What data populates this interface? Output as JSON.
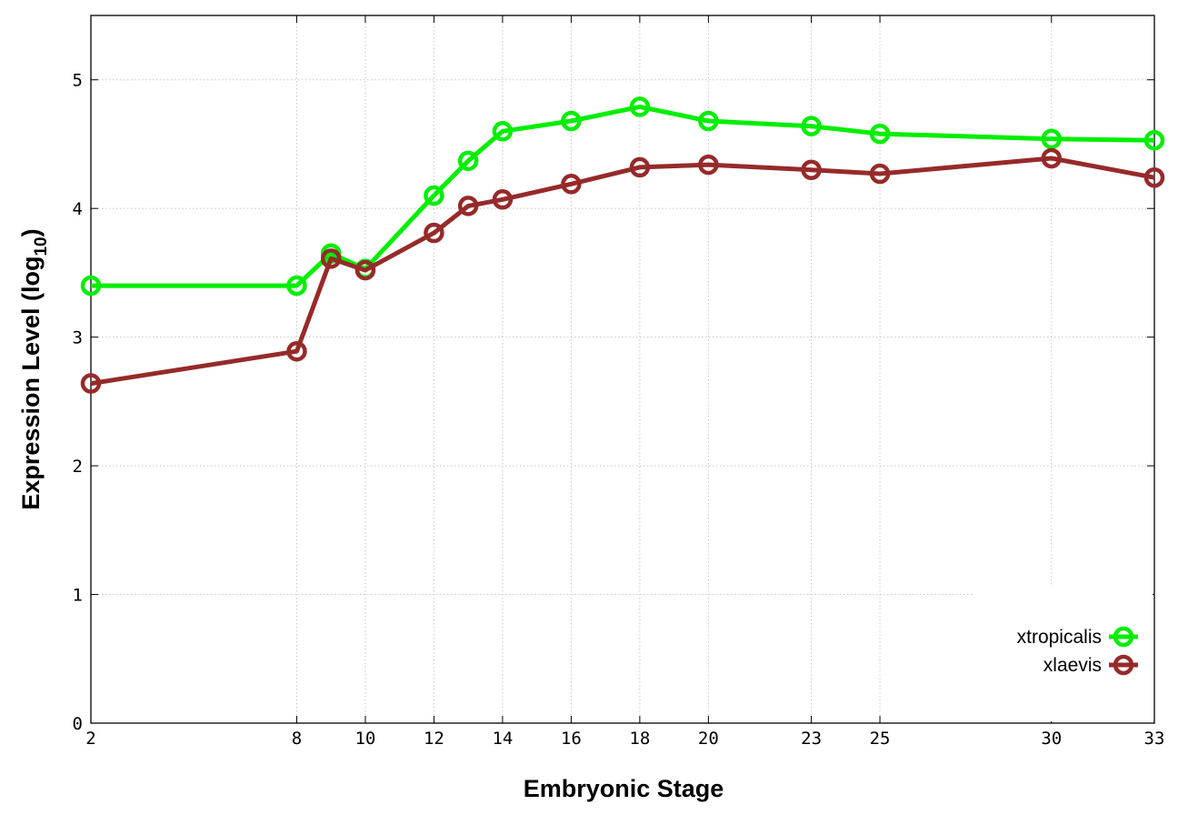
{
  "chart_data": {
    "type": "line",
    "xlabel": "Embryonic Stage",
    "ylabel_main": "Expression Level (log",
    "ylabel_sub": "10",
    "ylabel_close": ")",
    "xlim": [
      2,
      33
    ],
    "ylim": [
      0,
      5.5
    ],
    "x_ticks": [
      2,
      8,
      10,
      12,
      14,
      16,
      18,
      20,
      23,
      25,
      30,
      33
    ],
    "x_tick_labels": [
      "2",
      "8",
      "10",
      "12",
      "14",
      "16",
      "18",
      "20",
      "23",
      "25",
      "30",
      "33"
    ],
    "y_ticks": [
      0,
      1,
      2,
      3,
      4,
      5
    ],
    "y_tick_labels": [
      "0",
      "1",
      "2",
      "3",
      "4",
      "5"
    ],
    "grid": true,
    "legend_position": "bottom-right",
    "x": [
      2,
      8,
      9,
      10,
      12,
      13,
      14,
      16,
      18,
      20,
      23,
      25,
      30,
      33
    ],
    "series": [
      {
        "name": "xtropicalis",
        "color": "#00ee00",
        "values": [
          3.4,
          3.4,
          3.65,
          3.53,
          4.1,
          4.37,
          4.6,
          4.68,
          4.79,
          4.68,
          4.64,
          4.58,
          4.54,
          4.53
        ]
      },
      {
        "name": "xlaevis",
        "color": "#962a2a",
        "values": [
          2.64,
          2.89,
          3.61,
          3.52,
          3.81,
          4.02,
          4.07,
          4.19,
          4.32,
          4.34,
          4.3,
          4.27,
          4.39,
          4.24
        ]
      }
    ]
  }
}
